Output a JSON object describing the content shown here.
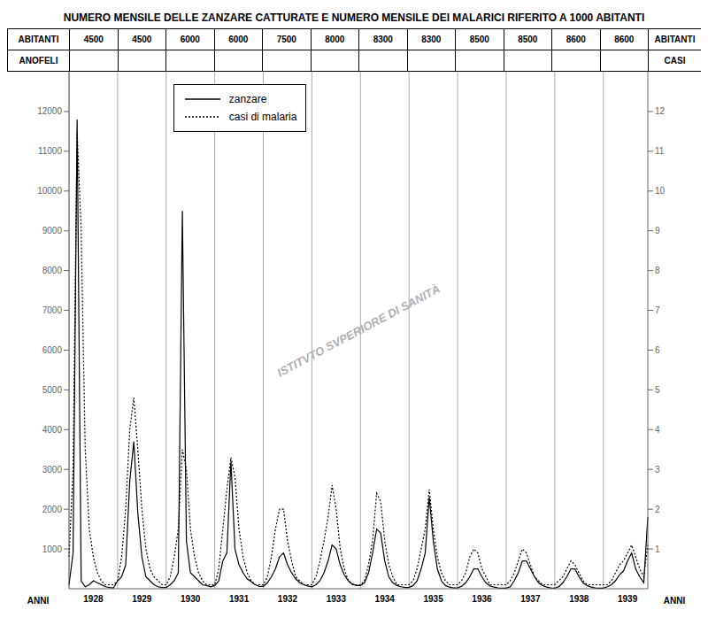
{
  "chart_data": {
    "type": "line",
    "title": "NUMERO MENSILE DELLE ZANZARE CATTURATE E NUMERO MENSILE DEI MALARICI RIFERITO A 1000 ABITANTI",
    "xlabel": "ANNI",
    "ylabel": "ANOFELI",
    "y2label": "CASI",
    "categories": [
      null,
      null,
      null,
      null,
      null,
      null,
      "1928",
      null,
      null,
      null,
      null,
      null,
      null,
      null,
      null,
      null,
      null,
      null,
      "1929",
      null,
      null,
      null,
      null,
      null,
      null,
      null,
      null,
      null,
      null,
      null,
      "1930",
      null,
      null,
      null,
      null,
      null,
      null,
      null,
      null,
      null,
      null,
      null,
      "1931",
      null,
      null,
      null,
      null,
      null,
      null,
      null,
      null,
      null,
      null,
      null,
      "1932",
      null,
      null,
      null,
      null,
      null,
      null,
      null,
      null,
      null,
      null,
      null,
      "1933",
      null,
      null,
      null,
      null,
      null,
      null,
      null,
      null,
      null,
      null,
      null,
      "1934",
      null,
      null,
      null,
      null,
      null,
      null,
      null,
      null,
      null,
      null,
      null,
      "1935",
      null,
      null,
      null,
      null,
      null,
      null,
      null,
      null,
      null,
      null,
      null,
      "1936",
      null,
      null,
      null,
      null,
      null,
      null,
      null,
      null,
      null,
      null,
      null,
      "1937",
      null,
      null,
      null,
      null,
      null,
      null,
      null,
      null,
      null,
      null,
      null,
      "1938",
      null,
      null,
      null,
      null,
      null,
      null,
      null,
      null,
      null,
      null,
      null,
      "1939",
      null,
      null,
      null,
      null,
      null
    ],
    "series": [
      {
        "name": "zanzare",
        "color": "#000000",
        "line_style": "solid",
        "values": [
          100,
          900,
          11800,
          200,
          50,
          100,
          200,
          150,
          100,
          50,
          30,
          20,
          200,
          300,
          600,
          2700,
          3700,
          1900,
          800,
          300,
          200,
          100,
          50,
          30,
          30,
          100,
          200,
          400,
          9500,
          1200,
          400,
          300,
          200,
          100,
          80,
          50,
          80,
          200,
          700,
          900,
          3200,
          1000,
          600,
          400,
          250,
          180,
          100,
          60,
          60,
          150,
          300,
          500,
          800,
          900,
          600,
          400,
          250,
          150,
          100,
          70,
          50,
          100,
          200,
          400,
          700,
          1100,
          1000,
          600,
          350,
          200,
          120,
          80,
          80,
          150,
          400,
          900,
          1500,
          1400,
          700,
          300,
          150,
          80,
          50,
          30,
          30,
          80,
          200,
          500,
          900,
          2300,
          1200,
          500,
          200,
          80,
          40,
          20,
          20,
          60,
          150,
          300,
          500,
          500,
          300,
          150,
          70,
          40,
          20,
          15,
          15,
          50,
          200,
          400,
          700,
          700,
          500,
          300,
          150,
          80,
          40,
          20,
          15,
          50,
          150,
          300,
          500,
          500,
          300,
          150,
          80,
          40,
          20,
          15,
          15,
          50,
          100,
          200,
          350,
          450,
          700,
          900,
          500,
          300,
          150,
          1800
        ]
      },
      {
        "name": "casi di malaria",
        "color": "#000000",
        "line_style": "dotted",
        "axis": "y2",
        "values": [
          0.8,
          3.0,
          11.5,
          9.0,
          3.5,
          1.5,
          0.8,
          0.4,
          0.2,
          0.1,
          0.1,
          0.1,
          0.2,
          0.8,
          2.0,
          4.0,
          4.8,
          3.5,
          2.0,
          1.0,
          0.5,
          0.3,
          0.2,
          0.1,
          0.1,
          0.3,
          0.8,
          1.5,
          3.5,
          3.0,
          1.5,
          0.8,
          0.4,
          0.2,
          0.1,
          0.1,
          0.1,
          0.5,
          1.5,
          2.5,
          3.3,
          2.8,
          1.5,
          0.8,
          0.4,
          0.2,
          0.1,
          0.1,
          0.1,
          0.3,
          0.8,
          1.5,
          2.0,
          2.0,
          1.2,
          0.7,
          0.3,
          0.2,
          0.1,
          0.1,
          0.1,
          0.3,
          0.7,
          1.2,
          1.8,
          2.6,
          2.0,
          1.0,
          0.5,
          0.2,
          0.1,
          0.1,
          0.1,
          0.2,
          0.6,
          1.2,
          2.4,
          2.2,
          1.2,
          0.6,
          0.3,
          0.1,
          0.1,
          0.1,
          0.1,
          0.2,
          0.5,
          1.0,
          1.5,
          2.5,
          1.5,
          0.8,
          0.4,
          0.2,
          0.1,
          0.1,
          0.1,
          0.2,
          0.4,
          0.8,
          1.0,
          0.9,
          0.5,
          0.3,
          0.1,
          0.1,
          0.1,
          0.1,
          0.1,
          0.2,
          0.4,
          0.7,
          1.0,
          0.9,
          0.6,
          0.3,
          0.2,
          0.1,
          0.1,
          0.1,
          0.1,
          0.2,
          0.3,
          0.5,
          0.7,
          0.6,
          0.4,
          0.2,
          0.1,
          0.1,
          0.1,
          0.1,
          0.1,
          0.1,
          0.2,
          0.4,
          0.6,
          0.7,
          0.9,
          1.1,
          0.8,
          0.5,
          0.3,
          1.1
        ]
      }
    ],
    "ylim": [
      0,
      13000
    ],
    "yticks": [
      1000,
      2000,
      3000,
      4000,
      5000,
      6000,
      7000,
      8000,
      9000,
      10000,
      11000,
      12000
    ],
    "y2lim": [
      0,
      13
    ],
    "y2ticks": [
      1,
      2,
      3,
      4,
      5,
      6,
      7,
      8,
      9,
      10,
      11,
      12
    ],
    "grid": true,
    "legend": "upper left",
    "annotations": [
      "ISTITVTO SVPERIORE DI SANITÀ"
    ],
    "population": {
      "label": "ABITANTI",
      "values": [
        4500,
        4500,
        6000,
        6000,
        7500,
        8000,
        8300,
        8300,
        8500,
        8500,
        8600,
        8600
      ]
    }
  }
}
